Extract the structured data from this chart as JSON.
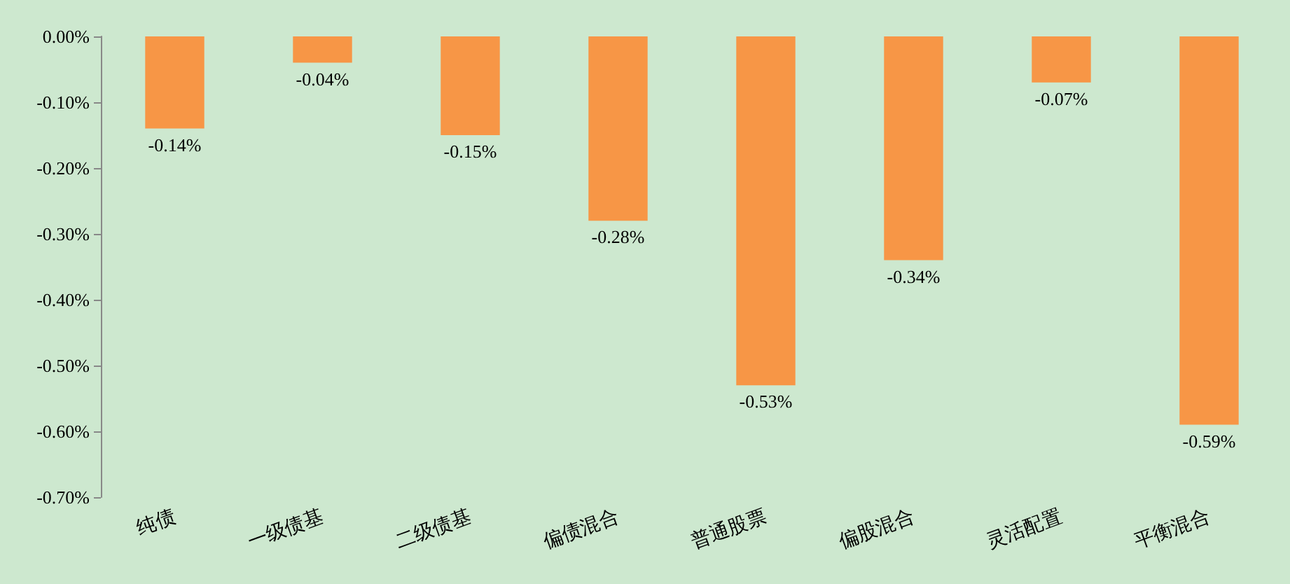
{
  "chart_data": {
    "type": "bar",
    "categories": [
      "纯债",
      "一级债基",
      "二级债基",
      "偏债混合",
      "普通股票",
      "偏股混合",
      "灵活配置",
      "平衡混合"
    ],
    "values": [
      -0.14,
      -0.04,
      -0.15,
      -0.28,
      -0.53,
      -0.34,
      -0.07,
      -0.59
    ],
    "value_labels": [
      "-0.14%",
      "-0.04%",
      "-0.15%",
      "-0.28%",
      "-0.53%",
      "-0.34%",
      "-0.07%",
      "-0.59%"
    ],
    "color": "#f79646",
    "ylim": [
      -0.7,
      0
    ],
    "yticks": [
      {
        "value": 0,
        "label": "0.00%"
      },
      {
        "value": -0.1,
        "label": "-0.10%"
      },
      {
        "value": -0.2,
        "label": "-0.20%"
      },
      {
        "value": -0.3,
        "label": "-0.30%"
      },
      {
        "value": -0.4,
        "label": "-0.40%"
      },
      {
        "value": -0.5,
        "label": "-0.50%"
      },
      {
        "value": -0.6,
        "label": "-0.60%"
      },
      {
        "value": -0.7,
        "label": "-0.70%"
      }
    ],
    "grid": false
  }
}
